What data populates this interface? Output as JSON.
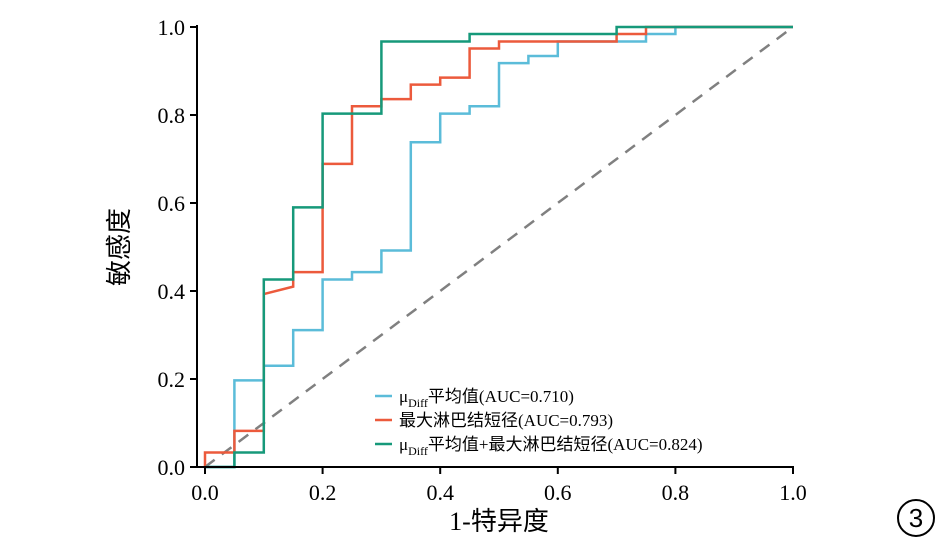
{
  "chart_data": {
    "type": "line",
    "title": "",
    "xlabel": "1-特异度",
    "ylabel": "敏感度",
    "xlim": [
      0,
      1
    ],
    "ylim": [
      0,
      1
    ],
    "xticks": [
      "0.0",
      "0.2",
      "0.4",
      "0.6",
      "0.8",
      "1.0"
    ],
    "yticks": [
      "0.0",
      "0.2",
      "0.4",
      "0.6",
      "0.8",
      "1.0"
    ],
    "grid": false,
    "legend_position": "bottom-right",
    "panel_label": "3",
    "reference_line": {
      "name": "diagonal",
      "color": "#808080",
      "style": "dashed"
    },
    "series": [
      {
        "name": "μDiff平均值(AUC=0.710)",
        "legend_main": "μ",
        "legend_sub": "Diff",
        "legend_rest": "平均值(AUC=0.710)",
        "color": "#5bbcd9",
        "x": [
          0,
          0.05,
          0.05,
          0.1,
          0.1,
          0.15,
          0.15,
          0.2,
          0.2,
          0.25,
          0.25,
          0.3,
          0.3,
          0.35,
          0.35,
          0.4,
          0.4,
          0.45,
          0.45,
          0.5,
          0.5,
          0.55,
          0.55,
          0.6,
          0.6,
          0.75,
          0.75,
          0.8,
          0.8,
          1
        ],
        "y": [
          0,
          0,
          0.197,
          0.197,
          0.23,
          0.23,
          0.311,
          0.311,
          0.426,
          0.426,
          0.443,
          0.443,
          0.492,
          0.492,
          0.738,
          0.738,
          0.803,
          0.803,
          0.82,
          0.82,
          0.918,
          0.918,
          0.934,
          0.934,
          0.967,
          0.967,
          0.984,
          0.984,
          1,
          1
        ]
      },
      {
        "name": "最大淋巴结短径(AUC=0.793)",
        "legend_main": "",
        "legend_sub": "",
        "legend_rest": "最大淋巴结短径(AUC=0.793)",
        "color": "#ec5a3c",
        "x": [
          0,
          0,
          0.05,
          0.05,
          0.1,
          0.1,
          0.15,
          0.15,
          0.2,
          0.2,
          0.25,
          0.25,
          0.3,
          0.3,
          0.35,
          0.35,
          0.4,
          0.4,
          0.45,
          0.45,
          0.5,
          0.5,
          0.7,
          0.7,
          0.75,
          0.75,
          1
        ],
        "y": [
          0,
          0.033,
          0.033,
          0.082,
          0.082,
          0.393,
          0.41,
          0.443,
          0.443,
          0.689,
          0.689,
          0.82,
          0.82,
          0.836,
          0.836,
          0.869,
          0.869,
          0.885,
          0.885,
          0.951,
          0.951,
          0.967,
          0.967,
          0.984,
          0.984,
          1,
          1
        ]
      },
      {
        "name": "μDiff平均值+最大淋巴结短径(AUC=0.824)",
        "legend_main": "μ",
        "legend_sub": "Diff",
        "legend_rest": "平均值+最大淋巴结短径(AUC=0.824)",
        "color": "#16997a",
        "x": [
          0,
          0.05,
          0.05,
          0.1,
          0.1,
          0.15,
          0.15,
          0.2,
          0.2,
          0.3,
          0.3,
          0.45,
          0.45,
          0.7,
          0.7,
          1
        ],
        "y": [
          0,
          0,
          0.033,
          0.033,
          0.426,
          0.426,
          0.59,
          0.59,
          0.803,
          0.803,
          0.967,
          0.967,
          0.984,
          0.984,
          1,
          1
        ]
      }
    ]
  }
}
